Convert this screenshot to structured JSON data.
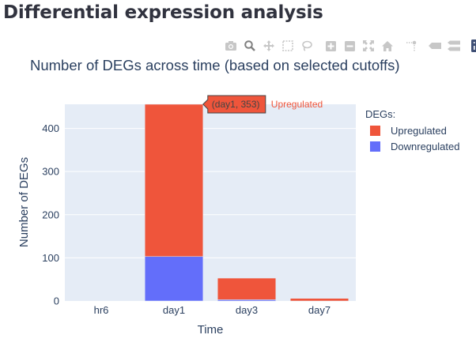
{
  "page": {
    "title": "Differential expression analysis"
  },
  "modebar": {
    "buttons": [
      {
        "name": "camera-icon",
        "label": "Download plot as a png"
      },
      {
        "name": "zoom-icon",
        "label": "Zoom"
      },
      {
        "name": "pan-icon",
        "label": "Pan"
      },
      {
        "name": "box-select-icon",
        "label": "Box Select"
      },
      {
        "name": "lasso-select-icon",
        "label": "Lasso Select"
      },
      {
        "name": "zoom-in-icon",
        "label": "Zoom in"
      },
      {
        "name": "zoom-out-icon",
        "label": "Zoom out"
      },
      {
        "name": "autoscale-icon",
        "label": "Autoscale"
      },
      {
        "name": "reset-axes-icon",
        "label": "Reset axes"
      },
      {
        "name": "spike-lines-icon",
        "label": "Toggle Spike Lines"
      },
      {
        "name": "hover-closest-icon",
        "label": "Show closest data on hover"
      },
      {
        "name": "hover-compare-icon",
        "label": "Compare data on hover"
      },
      {
        "name": "plotly-logo-icon",
        "label": "Produced with Plotly"
      }
    ],
    "icon_color": "#c7c7c7",
    "active_color": "#808080",
    "logo_color": "#3f4f75"
  },
  "chart_data": {
    "type": "bar",
    "barmode": "stack",
    "title": "Number of DEGs across time (based on selected cutoffs)",
    "xlabel": "Time",
    "ylabel": "Number of DEGs",
    "categories": [
      "hr6",
      "day1",
      "day3",
      "day7"
    ],
    "series": [
      {
        "name": "Downregulated",
        "values": [
          0,
          103,
          3,
          0
        ],
        "color": "#636efa"
      },
      {
        "name": "Upregulated",
        "values": [
          0,
          353,
          50,
          6
        ],
        "color": "#ef553b"
      }
    ],
    "ylim": [
      0,
      456
    ],
    "yticks": [
      0,
      100,
      200,
      300,
      400
    ],
    "legend": {
      "title": "DEGs:",
      "items": [
        "Upregulated",
        "Downregulated"
      ],
      "position": "right"
    },
    "grid": true,
    "plot_bgcolor": "#e5ecf6",
    "hover": {
      "category": "day1",
      "series": "Upregulated",
      "value": 353,
      "text": "(day1, 353)",
      "series_label": "Upregulated"
    }
  }
}
